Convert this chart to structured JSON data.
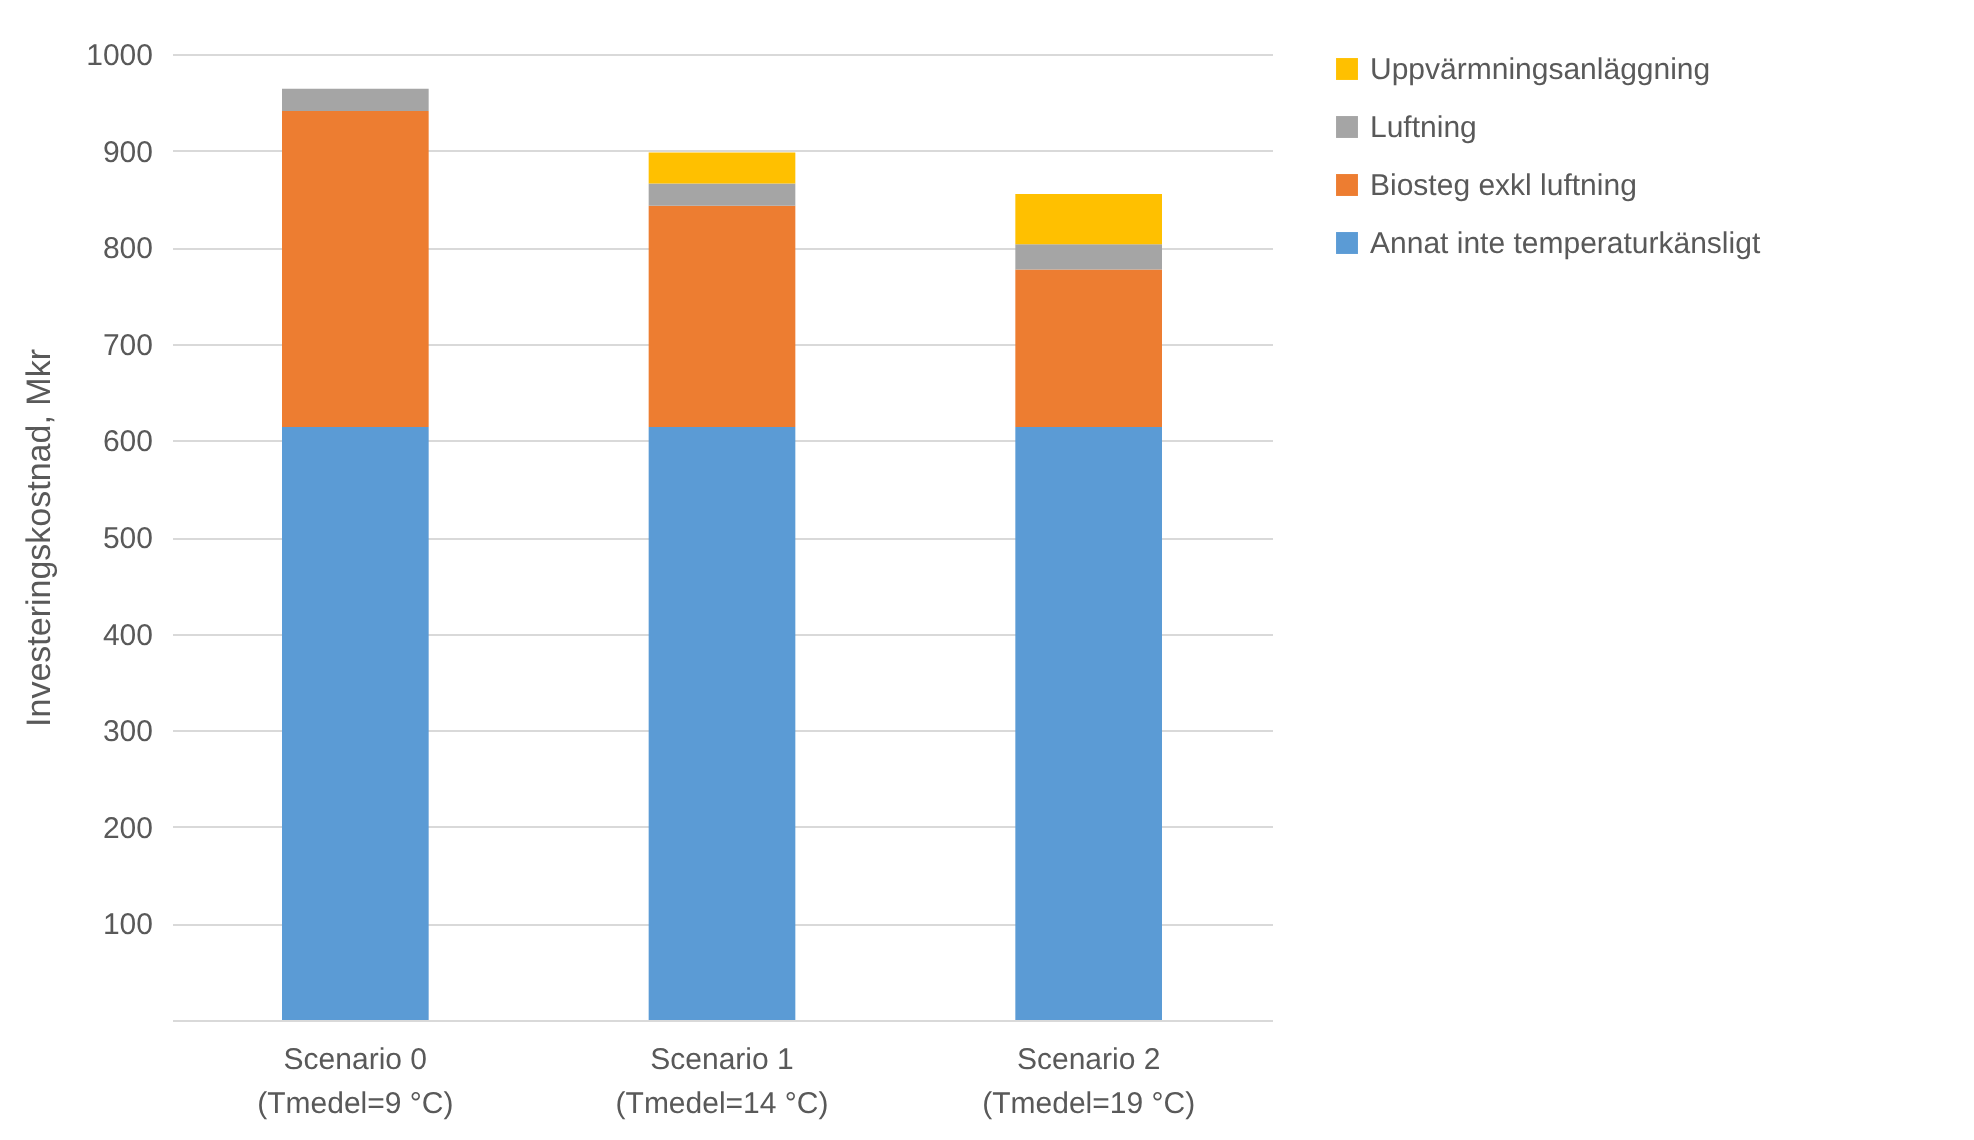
{
  "chart_data": {
    "type": "bar",
    "stacked": true,
    "ylabel": "Investeringskostnad, Mkr",
    "categories": [
      "Scenario 0\n(Tmedel=9 °C)",
      "Scenario 1\n(Tmedel=14 °C)",
      "Scenario 2\n(Tmedel=19 °C)"
    ],
    "series": [
      {
        "name": "Annat inte temperaturkänsligt",
        "color": "#5b9bd5",
        "values": [
          614,
          614,
          614
        ]
      },
      {
        "name": "Biosteg exkl luftning",
        "color": "#ed7d31",
        "values": [
          327,
          229,
          163
        ]
      },
      {
        "name": "Luftning",
        "color": "#a5a5a5",
        "values": [
          23,
          23,
          26
        ]
      },
      {
        "name": "Uppvärmningsanläggning",
        "color": "#ffc000",
        "values": [
          null,
          32,
          52
        ]
      }
    ],
    "ylim": [
      0,
      1000
    ],
    "yticks": [
      100,
      200,
      300,
      400,
      500,
      600,
      700,
      800,
      900,
      1000
    ],
    "grid": "y",
    "legend": "right"
  }
}
